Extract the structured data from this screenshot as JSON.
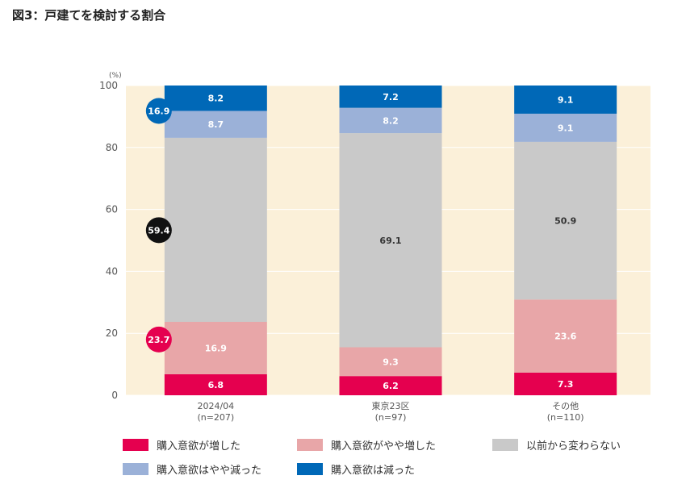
{
  "title": "図3：戸建てを検討する割合",
  "colors": {
    "plot_bg": "#fbf0d9",
    "grid": "#ffffff",
    "axis_text": "#555555",
    "badge_text": "#ffffff"
  },
  "chart_data": {
    "type": "bar",
    "stacked": true,
    "y_unit": "(%)",
    "ylim": [
      0,
      100
    ],
    "yticks": [
      "0",
      "20",
      "40",
      "60",
      "80",
      "100"
    ],
    "categories": [
      {
        "name": "2024/04",
        "sub": "(n=207)"
      },
      {
        "name": "東京23区",
        "sub": "(n=97)"
      },
      {
        "name": "その他",
        "sub": "(n=110)"
      }
    ],
    "series": [
      {
        "name": "購入意欲が増した",
        "color": "#e5004f",
        "values": [
          6.8,
          6.2,
          7.3
        ]
      },
      {
        "name": "購入意欲がやや増した",
        "color": "#e8a6a8",
        "values": [
          16.9,
          9.3,
          23.6
        ]
      },
      {
        "name": "以前から変わらない",
        "color": "#c9c9c9",
        "values": [
          59.4,
          69.1,
          50.9
        ]
      },
      {
        "name": "購入意欲はやや減った",
        "color": "#9bb1d8",
        "values": [
          8.7,
          8.2,
          9.1
        ]
      },
      {
        "name": "購入意欲は減った",
        "color": "#0068b7",
        "values": [
          8.2,
          7.2,
          9.1
        ]
      }
    ],
    "value_labels": [
      [
        "6.8",
        "16.9",
        "",
        "8.7",
        "8.2"
      ],
      [
        "6.2",
        "9.3",
        "69.1",
        "8.2",
        "7.2"
      ],
      [
        "7.3",
        "23.6",
        "50.9",
        "9.1",
        "9.1"
      ]
    ],
    "badges": [
      {
        "value": "23.7",
        "y_value": 18.0,
        "color": "#e5004f"
      },
      {
        "value": "59.4",
        "y_value": 53.3,
        "color": "#111111"
      },
      {
        "value": "16.9",
        "y_value": 91.8,
        "color": "#0068b7"
      }
    ]
  },
  "legend": [
    {
      "label": "購入意欲が増した",
      "color": "#e5004f"
    },
    {
      "label": "購入意欲がやや増した",
      "color": "#e8a6a8"
    },
    {
      "label": "以前から変わらない",
      "color": "#c9c9c9"
    },
    {
      "label": "購入意欲はやや減った",
      "color": "#9bb1d8"
    },
    {
      "label": "購入意欲は減った",
      "color": "#0068b7"
    }
  ]
}
